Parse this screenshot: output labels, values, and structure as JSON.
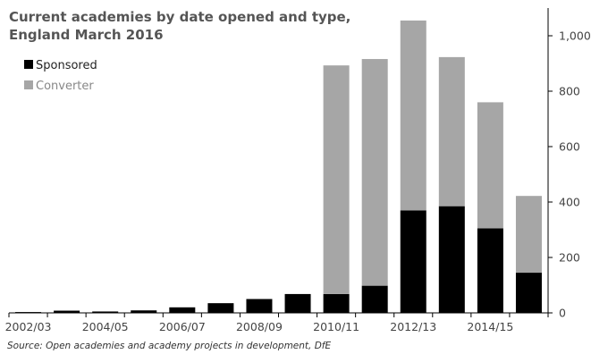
{
  "chart_data": {
    "type": "bar",
    "stacked": true,
    "title_line1": "Current academies by date opened and type,",
    "title_line2": "England March 2016",
    "categories": [
      "2002/03",
      "2003/04",
      "2004/05",
      "2005/06",
      "2006/07",
      "2007/08",
      "2008/09",
      "2009/10",
      "2010/11",
      "2011/12",
      "2012/13",
      "2013/14",
      "2014/15",
      "2015/16"
    ],
    "tick_labels": [
      "2002/03",
      "2004/05",
      "2006/07",
      "2008/09",
      "2010/11",
      "2012/13",
      "2014/15"
    ],
    "series": [
      {
        "name": "Sponsored",
        "color": "#000000",
        "values": [
          3,
          8,
          5,
          9,
          20,
          35,
          50,
          68,
          68,
          98,
          370,
          385,
          305,
          145
        ]
      },
      {
        "name": "Converter",
        "color": "#a6a6a6",
        "values": [
          0,
          0,
          0,
          0,
          0,
          0,
          0,
          0,
          825,
          818,
          685,
          538,
          455,
          277
        ]
      }
    ],
    "ylim": [
      0,
      1100
    ],
    "yticks": [
      0,
      200,
      400,
      600,
      800,
      1000
    ],
    "ytick_labels": [
      "0",
      "200",
      "400",
      "600",
      "800",
      "1,000"
    ],
    "y_axis_side": "right",
    "legend_position": "top-left",
    "grid": false,
    "source": "Source: Open academies and academy projects in development, DfE"
  }
}
